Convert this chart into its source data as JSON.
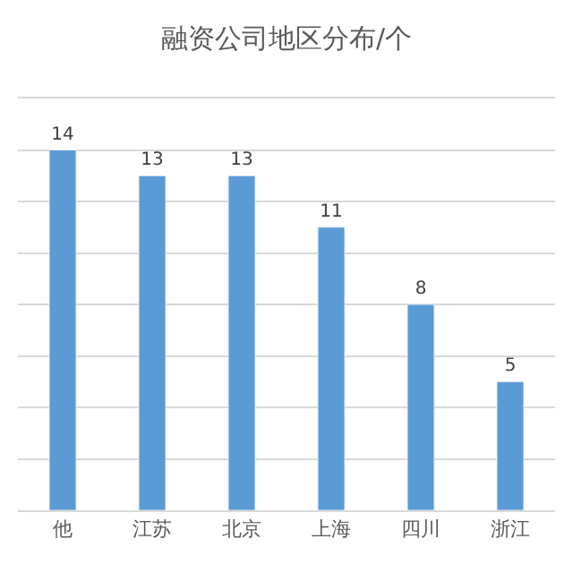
{
  "chart_data": {
    "type": "bar",
    "title": "融资公司地区分布/个",
    "categories": [
      "他",
      "江苏",
      "北京",
      "上海",
      "四川",
      "浙江"
    ],
    "values": [
      14,
      13,
      13,
      11,
      8,
      5
    ],
    "color": "#5b9bd5",
    "ylim": [
      0,
      16
    ],
    "yticks": [
      {
        "value": 0,
        "label": null
      },
      {
        "value": 2,
        "label": null
      },
      {
        "value": 4,
        "label": null
      },
      {
        "value": 6,
        "label": null
      },
      {
        "value": 8,
        "label": null
      },
      {
        "value": 10,
        "label": null
      },
      {
        "value": 12,
        "label": null
      },
      {
        "value": 14,
        "label": null
      },
      {
        "value": 16,
        "label": null
      }
    ],
    "grid": "y",
    "data_labels": true,
    "tick_labels": "x",
    "legend": false
  }
}
